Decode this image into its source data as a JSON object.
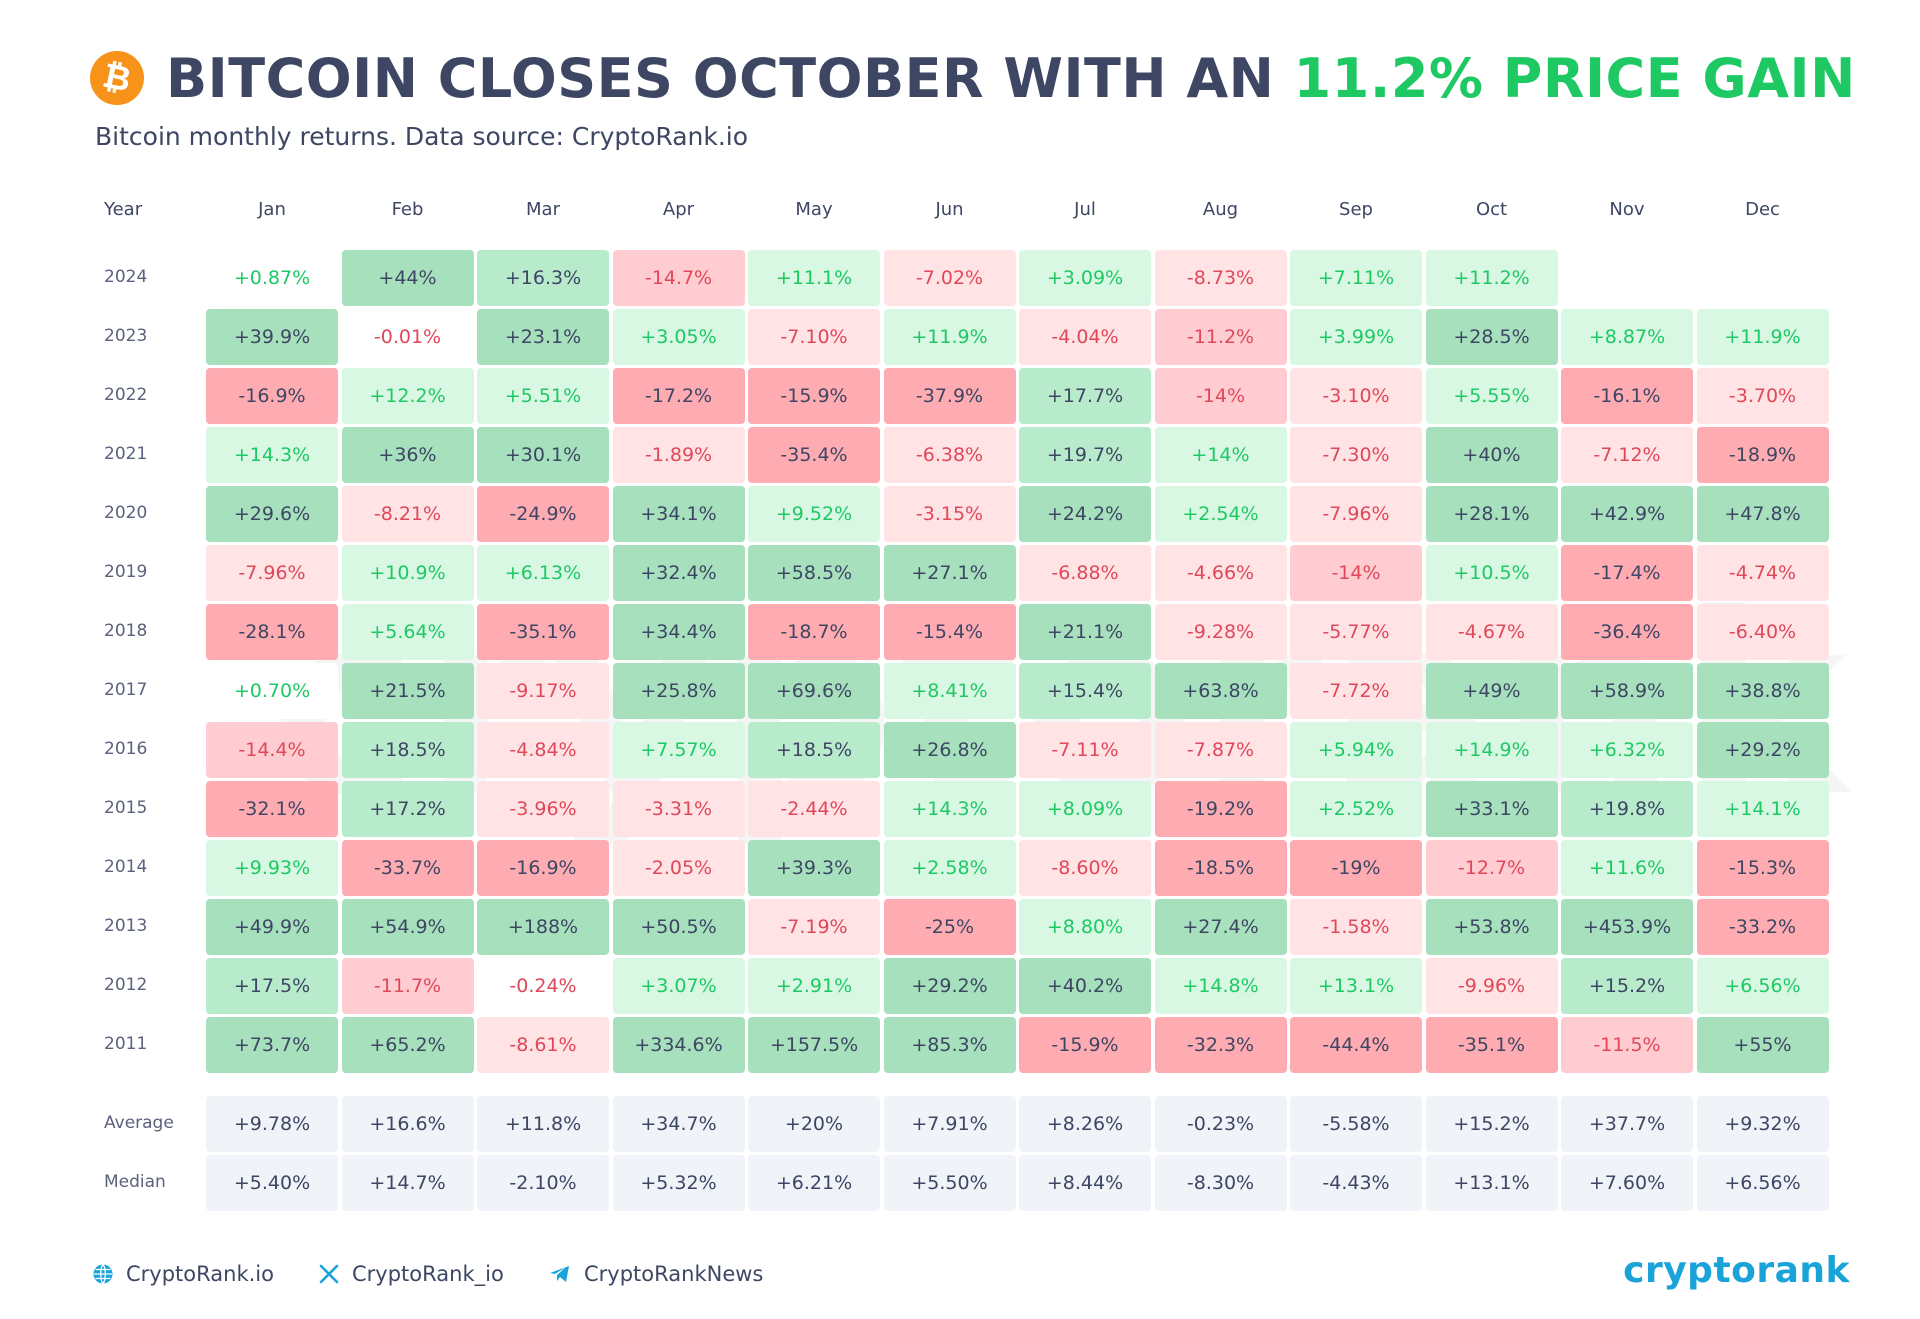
{
  "header": {
    "title_prefix": "BITCOIN CLOSES OCTOBER WITH AN ",
    "title_highlight": "11.2% PRICE GAIN",
    "subtitle": "Bitcoin monthly returns. Data source: CryptoRank.io"
  },
  "colors": {
    "positive_text": "#1ec964",
    "negative_text": "#e0485a",
    "neutral_text": "#3d4663",
    "stat_bg": "#f0f3f8",
    "title_highlight": "#1ec964",
    "bitcoin": "#f7931a",
    "brand": "#1aa3d9"
  },
  "footer": {
    "links": [
      {
        "icon": "globe-icon",
        "label": "CryptoRank.io"
      },
      {
        "icon": "x-logo-icon",
        "label": "CryptoRank_io"
      },
      {
        "icon": "telegram-icon",
        "label": "CryptoRankNews"
      }
    ],
    "brand": "cryptorank"
  },
  "chart_data": {
    "type": "table",
    "year_header": "Year",
    "columns": [
      "Jan",
      "Feb",
      "Mar",
      "Apr",
      "May",
      "Jun",
      "Jul",
      "Aug",
      "Sep",
      "Oct",
      "Nov",
      "Dec"
    ],
    "rows": [
      {
        "year": "2024",
        "values": [
          "+0.87%",
          "+44%",
          "+16.3%",
          "-14.7%",
          "+11.1%",
          "-7.02%",
          "+3.09%",
          "-8.73%",
          "+7.11%",
          "+11.2%",
          "",
          ""
        ]
      },
      {
        "year": "2023",
        "values": [
          "+39.9%",
          "-0.01%",
          "+23.1%",
          "+3.05%",
          "-7.10%",
          "+11.9%",
          "-4.04%",
          "-11.2%",
          "+3.99%",
          "+28.5%",
          "+8.87%",
          "+11.9%"
        ]
      },
      {
        "year": "2022",
        "values": [
          "-16.9%",
          "+12.2%",
          "+5.51%",
          "-17.2%",
          "-15.9%",
          "-37.9%",
          "+17.7%",
          "-14%",
          "-3.10%",
          "+5.55%",
          "-16.1%",
          "-3.70%"
        ]
      },
      {
        "year": "2021",
        "values": [
          "+14.3%",
          "+36%",
          "+30.1%",
          "-1.89%",
          "-35.4%",
          "-6.38%",
          "+19.7%",
          "+14%",
          "-7.30%",
          "+40%",
          "-7.12%",
          "-18.9%"
        ]
      },
      {
        "year": "2020",
        "values": [
          "+29.6%",
          "-8.21%",
          "-24.9%",
          "+34.1%",
          "+9.52%",
          "-3.15%",
          "+24.2%",
          "+2.54%",
          "-7.96%",
          "+28.1%",
          "+42.9%",
          "+47.8%"
        ]
      },
      {
        "year": "2019",
        "values": [
          "-7.96%",
          "+10.9%",
          "+6.13%",
          "+32.4%",
          "+58.5%",
          "+27.1%",
          "-6.88%",
          "-4.66%",
          "-14%",
          "+10.5%",
          "-17.4%",
          "-4.74%"
        ]
      },
      {
        "year": "2018",
        "values": [
          "-28.1%",
          "+5.64%",
          "-35.1%",
          "+34.4%",
          "-18.7%",
          "-15.4%",
          "+21.1%",
          "-9.28%",
          "-5.77%",
          "-4.67%",
          "-36.4%",
          "-6.40%"
        ]
      },
      {
        "year": "2017",
        "values": [
          "+0.70%",
          "+21.5%",
          "-9.17%",
          "+25.8%",
          "+69.6%",
          "+8.41%",
          "+15.4%",
          "+63.8%",
          "-7.72%",
          "+49%",
          "+58.9%",
          "+38.8%"
        ]
      },
      {
        "year": "2016",
        "values": [
          "-14.4%",
          "+18.5%",
          "-4.84%",
          "+7.57%",
          "+18.5%",
          "+26.8%",
          "-7.11%",
          "-7.87%",
          "+5.94%",
          "+14.9%",
          "+6.32%",
          "+29.2%"
        ]
      },
      {
        "year": "2015",
        "values": [
          "-32.1%",
          "+17.2%",
          "-3.96%",
          "-3.31%",
          "-2.44%",
          "+14.3%",
          "+8.09%",
          "-19.2%",
          "+2.52%",
          "+33.1%",
          "+19.8%",
          "+14.1%"
        ]
      },
      {
        "year": "2014",
        "values": [
          "+9.93%",
          "-33.7%",
          "-16.9%",
          "-2.05%",
          "+39.3%",
          "+2.58%",
          "-8.60%",
          "-18.5%",
          "-19%",
          "-12.7%",
          "+11.6%",
          "-15.3%"
        ]
      },
      {
        "year": "2013",
        "values": [
          "+49.9%",
          "+54.9%",
          "+188%",
          "+50.5%",
          "-7.19%",
          "-25%",
          "+8.80%",
          "+27.4%",
          "-1.58%",
          "+53.8%",
          "+453.9%",
          "-33.2%"
        ]
      },
      {
        "year": "2012",
        "values": [
          "+17.5%",
          "-11.7%",
          "-0.24%",
          "+3.07%",
          "+2.91%",
          "+29.2%",
          "+40.2%",
          "+14.8%",
          "+13.1%",
          "-9.96%",
          "+15.2%",
          "+6.56%"
        ]
      },
      {
        "year": "2011",
        "values": [
          "+73.7%",
          "+65.2%",
          "-8.61%",
          "+334.6%",
          "+157.5%",
          "+85.3%",
          "-15.9%",
          "-32.3%",
          "-44.4%",
          "-35.1%",
          "-11.5%",
          "+55%"
        ]
      }
    ],
    "stats": [
      {
        "label": "Average",
        "values": [
          "+9.78%",
          "+16.6%",
          "+11.8%",
          "+34.7%",
          "+20%",
          "+7.91%",
          "+8.26%",
          "-0.23%",
          "-5.58%",
          "+15.2%",
          "+37.7%",
          "+9.32%"
        ]
      },
      {
        "label": "Median",
        "values": [
          "+5.40%",
          "+14.7%",
          "-2.10%",
          "+5.32%",
          "+6.21%",
          "+5.50%",
          "+8.44%",
          "-8.30%",
          "-4.43%",
          "+13.1%",
          "+7.60%",
          "+6.56%"
        ]
      }
    ]
  }
}
